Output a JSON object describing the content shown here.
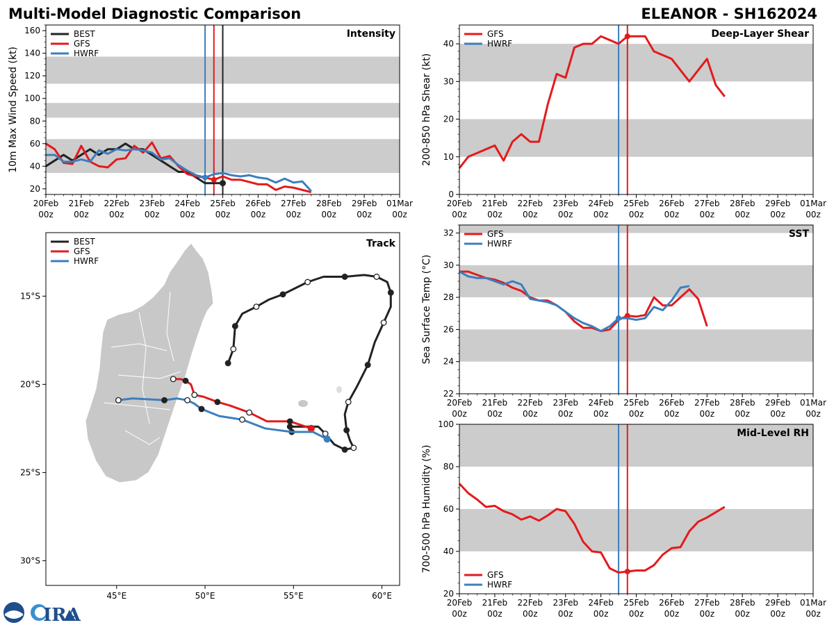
{
  "header": {
    "left_title": "Multi-Model Diagnostic Comparison",
    "right_title": "ELEANOR - SH162024"
  },
  "logo": {
    "text": "CIRA",
    "colors": {
      "blue": "#1f4e8c",
      "lightblue": "#3a8fd0"
    }
  },
  "colors": {
    "BEST": "#222222",
    "GFS": "#e31a1c",
    "HWRF": "#3a7fbf",
    "band": "#cccccc"
  },
  "times": [
    "2024-02-20T00",
    "2024-02-20T06",
    "2024-02-20T12",
    "2024-02-20T18",
    "2024-02-21T00",
    "2024-02-21T06",
    "2024-02-21T12",
    "2024-02-21T18",
    "2024-02-22T00",
    "2024-02-22T06",
    "2024-02-22T12",
    "2024-02-22T18",
    "2024-02-23T00",
    "2024-02-23T06",
    "2024-02-23T12",
    "2024-02-23T18",
    "2024-02-24T00",
    "2024-02-24T06",
    "2024-02-24T12",
    "2024-02-24T18",
    "2024-02-25T00",
    "2024-02-25T06",
    "2024-02-25T12",
    "2024-02-25T18",
    "2024-02-26T00",
    "2024-02-26T06",
    "2024-02-26T12",
    "2024-02-26T18",
    "2024-02-27T00",
    "2024-02-27T06",
    "2024-02-27T12"
  ],
  "x_ticks": {
    "dates": [
      "2024-02-20T00",
      "2024-02-21T00",
      "2024-02-22T00",
      "2024-02-23T00",
      "2024-02-24T00",
      "2024-02-25T00",
      "2024-02-26T00",
      "2024-02-27T00",
      "2024-02-28T00",
      "2024-02-29T00",
      "2024-03-01T00"
    ],
    "day_labels": [
      "20Feb",
      "21Feb",
      "22Feb",
      "23Feb",
      "24Feb",
      "25Feb",
      "26Feb",
      "27Feb",
      "28Feb",
      "29Feb",
      "01Mar"
    ],
    "hour_labels": [
      "00z",
      "00z",
      "00z",
      "00z",
      "00z",
      "00z",
      "00z",
      "00z",
      "00z",
      "00z",
      "00z"
    ]
  },
  "chart_data": [
    {
      "id": "intensity",
      "type": "line",
      "title": "Intensity",
      "ylabel": "10m Max Wind Speed (kt)",
      "xlim": [
        "2024-02-20T00",
        "2024-03-01T00"
      ],
      "ylim": [
        15,
        165
      ],
      "yticks": [
        20,
        40,
        60,
        80,
        100,
        120,
        140,
        160
      ],
      "bands": [
        [
          34,
          64
        ],
        [
          83,
          96
        ],
        [
          113,
          137
        ]
      ],
      "legend": {
        "position": "top-left",
        "entries": [
          "BEST",
          "GFS",
          "HWRF"
        ]
      },
      "init_lines": [
        {
          "model": "HWRF",
          "time": "2024-02-24T12"
        },
        {
          "model": "GFS",
          "time": "2024-02-24T18"
        },
        {
          "model": "BEST",
          "time": "2024-02-25T00"
        }
      ],
      "series": [
        {
          "name": "BEST",
          "values": [
            40,
            45,
            50,
            45,
            50,
            55,
            50,
            55,
            55,
            60,
            55,
            55,
            50,
            45,
            40,
            35,
            35,
            30,
            25,
            25,
            25
          ],
          "end_marker": true
        },
        {
          "name": "GFS",
          "values": [
            60,
            55,
            43,
            42,
            58,
            44,
            40,
            39,
            46,
            47,
            58,
            52,
            61,
            47,
            49,
            40,
            33,
            31,
            30,
            28,
            31,
            28,
            28,
            26,
            24,
            24,
            19,
            22,
            21,
            19,
            17
          ],
          "marker_time": "2024-02-24T18"
        },
        {
          "name": "HWRF",
          "values": [
            50,
            50,
            44,
            44,
            46,
            44,
            54,
            51,
            55,
            54,
            55,
            54,
            52,
            46,
            47,
            41,
            36,
            32,
            30,
            33,
            34,
            32,
            31,
            32,
            30,
            29,
            25.5,
            29,
            25.5,
            26.5,
            18
          ],
          "marker_time": "2024-02-24T12"
        }
      ]
    },
    {
      "id": "shear",
      "type": "line",
      "title": "Deep-Layer Shear",
      "ylabel": "200-850 hPa Shear (kt)",
      "xlim": [
        "2024-02-20T00",
        "2024-03-01T00"
      ],
      "ylim": [
        0,
        45
      ],
      "yticks": [
        0,
        10,
        20,
        30,
        40
      ],
      "bands": [
        [
          10,
          20
        ],
        [
          30,
          40
        ]
      ],
      "legend": {
        "position": "top-left",
        "entries": [
          "GFS",
          "HWRF"
        ]
      },
      "init_lines": [
        {
          "model": "HWRF",
          "time": "2024-02-24T12"
        },
        {
          "model": "GFS",
          "time": "2024-02-24T18"
        }
      ],
      "series": [
        {
          "name": "GFS",
          "values": [
            7,
            10,
            11,
            12,
            13,
            9,
            14,
            16,
            14,
            14,
            24,
            32,
            31,
            39,
            40,
            40,
            42,
            41,
            40,
            42,
            42,
            42,
            38,
            37,
            36,
            33,
            30,
            33,
            36,
            29,
            26
          ],
          "marker_time": "2024-02-24T18"
        },
        {
          "name": "HWRF",
          "values": []
        }
      ]
    },
    {
      "id": "sst",
      "type": "line",
      "title": "SST",
      "ylabel": "Sea Surface Temp (°C)",
      "xlim": [
        "2024-02-20T00",
        "2024-03-01T00"
      ],
      "ylim": [
        22,
        32.5
      ],
      "yticks": [
        22,
        24,
        26,
        28,
        30,
        32
      ],
      "bands": [
        [
          24,
          26
        ],
        [
          28,
          30
        ],
        [
          32,
          32.5
        ]
      ],
      "legend": {
        "position": "top-left",
        "entries": [
          "GFS",
          "HWRF"
        ]
      },
      "init_lines": [
        {
          "model": "HWRF",
          "time": "2024-02-24T12"
        },
        {
          "model": "GFS",
          "time": "2024-02-24T18"
        }
      ],
      "series": [
        {
          "name": "GFS",
          "values": [
            29.6,
            29.6,
            29.4,
            29.2,
            29.1,
            28.9,
            28.6,
            28.4,
            28.0,
            27.8,
            27.8,
            27.5,
            27.1,
            26.5,
            26.1,
            26.1,
            25.9,
            26.0,
            26.6,
            26.85,
            26.8,
            26.9,
            28.0,
            27.5,
            27.5,
            28.0,
            28.5,
            27.9,
            26.2
          ],
          "marker_time": "2024-02-24T18"
        },
        {
          "name": "HWRF",
          "values": [
            29.6,
            29.3,
            29.2,
            29.2,
            29.0,
            28.8,
            29.0,
            28.8,
            27.9,
            27.8,
            27.7,
            27.5,
            27.1,
            26.7,
            26.4,
            26.2,
            25.9,
            26.2,
            26.7,
            26.7,
            26.6,
            26.7,
            27.4,
            27.2,
            27.8,
            28.6,
            28.7
          ],
          "marker_time": "2024-02-24T12"
        }
      ]
    },
    {
      "id": "rh",
      "type": "line",
      "title": "Mid-Level RH",
      "ylabel": "700-500 hPa Humidity (%)",
      "xlim": [
        "2024-02-20T00",
        "2024-03-01T00"
      ],
      "ylim": [
        20,
        100
      ],
      "yticks": [
        20,
        40,
        60,
        80,
        100
      ],
      "bands": [
        [
          40,
          60
        ],
        [
          80,
          100
        ]
      ],
      "legend": {
        "position": "bottom-left",
        "entries": [
          "GFS",
          "HWRF"
        ]
      },
      "init_lines": [
        {
          "model": "HWRF",
          "time": "2024-02-24T12"
        },
        {
          "model": "GFS",
          "time": "2024-02-24T18"
        }
      ],
      "series": [
        {
          "name": "GFS",
          "values": [
            72,
            67.5,
            64.5,
            61,
            61.5,
            59,
            57.5,
            55,
            56.5,
            54.5,
            57,
            60,
            59,
            53,
            44.5,
            40,
            39.5,
            32,
            30,
            30.5,
            31,
            31,
            33.5,
            38.5,
            41.5,
            42,
            49.5,
            54,
            56,
            58.5,
            61
          ],
          "marker_time": "2024-02-24T18"
        },
        {
          "name": "HWRF",
          "values": []
        }
      ]
    },
    {
      "id": "track",
      "type": "map",
      "title": "Track",
      "lon_range": [
        41,
        61
      ],
      "lat_range": [
        -31.4,
        -11.4
      ],
      "lon_ticks": [
        45,
        50,
        55,
        60
      ],
      "lon_labels": [
        "45°E",
        "50°E",
        "55°E",
        "60°E"
      ],
      "lat_ticks": [
        -15,
        -20,
        -25,
        -30
      ],
      "lat_labels": [
        "15°S",
        "20°S",
        "25°S",
        "30°S"
      ],
      "legend": {
        "position": "top-left",
        "entries": [
          "BEST",
          "GFS",
          "HWRF"
        ]
      },
      "tracks": [
        {
          "name": "BEST",
          "points": [
            [
              51.3,
              -18.8,
              "filled"
            ],
            [
              51.6,
              -18.0,
              "open"
            ],
            [
              51.7,
              -16.7,
              "filled"
            ],
            [
              52.1,
              -16.0,
              ""
            ],
            [
              52.9,
              -15.6,
              "open"
            ],
            [
              53.6,
              -15.2,
              ""
            ],
            [
              54.4,
              -14.9,
              "filled"
            ],
            [
              55.8,
              -14.2,
              "open"
            ],
            [
              56.7,
              -13.9,
              ""
            ],
            [
              57.9,
              -13.9,
              "filled"
            ],
            [
              59.0,
              -13.8,
              ""
            ],
            [
              59.7,
              -13.9,
              "open"
            ],
            [
              60.3,
              -14.2,
              ""
            ],
            [
              60.5,
              -14.8,
              "filled"
            ],
            [
              60.5,
              -15.6,
              ""
            ],
            [
              60.1,
              -16.5,
              "open"
            ],
            [
              59.6,
              -17.6,
              ""
            ],
            [
              59.2,
              -18.9,
              "filled"
            ],
            [
              58.6,
              -20.1,
              ""
            ],
            [
              58.1,
              -21.0,
              "open"
            ],
            [
              57.9,
              -21.7,
              ""
            ],
            [
              58.0,
              -22.6,
              "filled"
            ],
            [
              58.2,
              -23.2,
              ""
            ],
            [
              58.4,
              -23.6,
              "open"
            ],
            [
              57.9,
              -23.7,
              "filled"
            ],
            [
              57.3,
              -23.4,
              ""
            ],
            [
              56.8,
              -22.8,
              "open"
            ],
            [
              56.4,
              -22.4,
              ""
            ],
            [
              54.8,
              -22.4,
              "filled"
            ],
            [
              54.9,
              -22.7,
              "filled"
            ]
          ]
        },
        {
          "name": "GFS",
          "points": [
            [
              48.2,
              -19.7,
              "open"
            ],
            [
              48.6,
              -19.7,
              ""
            ],
            [
              48.9,
              -19.8,
              "filled"
            ],
            [
              49.2,
              -20.0,
              ""
            ],
            [
              49.4,
              -20.6,
              "open"
            ],
            [
              49.9,
              -20.7,
              ""
            ],
            [
              50.7,
              -21.0,
              "filled"
            ],
            [
              51.4,
              -21.2,
              ""
            ],
            [
              52.5,
              -21.6,
              "open"
            ],
            [
              53.5,
              -22.1,
              ""
            ],
            [
              54.8,
              -22.1,
              "filled"
            ],
            [
              56.0,
              -22.5,
              "end"
            ]
          ]
        },
        {
          "name": "HWRF",
          "points": [
            [
              45.1,
              -20.9,
              "open"
            ],
            [
              45.9,
              -20.8,
              ""
            ],
            [
              47.7,
              -20.9,
              "filled"
            ],
            [
              48.4,
              -20.8,
              ""
            ],
            [
              49.0,
              -20.9,
              "open"
            ],
            [
              49.4,
              -21.1,
              ""
            ],
            [
              49.8,
              -21.4,
              "filled"
            ],
            [
              50.8,
              -21.8,
              ""
            ],
            [
              52.1,
              -22.0,
              "open"
            ],
            [
              53.4,
              -22.5,
              ""
            ],
            [
              54.9,
              -22.7,
              ""
            ],
            [
              56.1,
              -22.7,
              ""
            ],
            [
              56.9,
              -23.1,
              "end"
            ]
          ]
        }
      ]
    }
  ]
}
